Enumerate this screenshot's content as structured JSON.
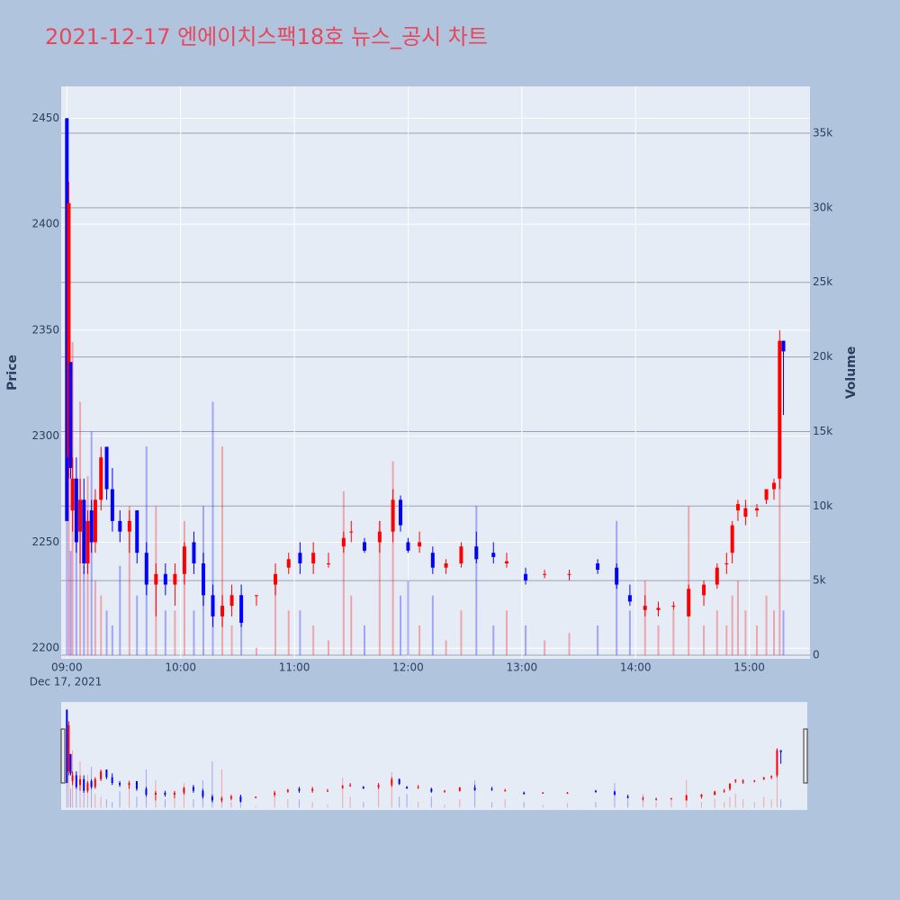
{
  "chart_data": {
    "type": "candlestick",
    "title": "2021-12-17 엔에이치스팩18호 뉴스_공시 차트",
    "y_label": "Price",
    "y2_label": "Volume",
    "x_date_label": "Dec 17, 2021",
    "increasing_color": "#ff0000",
    "decreasing_color": "#0000ff",
    "xlim": [
      "08:57",
      "15:32"
    ],
    "xticks": [
      "09:00",
      "10:00",
      "11:00",
      "12:00",
      "13:00",
      "14:00",
      "15:00"
    ],
    "ylim": [
      2195,
      2465
    ],
    "yticks": [
      2200,
      2250,
      2300,
      2350,
      2400,
      2450
    ],
    "y2lim": [
      -240,
      38140
    ],
    "y2ticks": [
      0,
      {
        "value": 5000,
        "label": "5k"
      },
      {
        "value": 10000,
        "label": "10k"
      },
      {
        "value": 15000,
        "label": "15k"
      },
      {
        "value": 20000,
        "label": "20k"
      },
      {
        "value": 25000,
        "label": "25k"
      },
      {
        "value": 30000,
        "label": "30k"
      },
      {
        "value": 35000,
        "label": "35k"
      }
    ],
    "grid": true,
    "rangeslider": true,
    "x": [
      "09:00",
      "09:01",
      "09:02",
      "09:03",
      "09:05",
      "09:07",
      "09:09",
      "09:11",
      "09:13",
      "09:15",
      "09:18",
      "09:21",
      "09:24",
      "09:28",
      "09:33",
      "09:37",
      "09:42",
      "09:47",
      "09:52",
      "09:57",
      "10:02",
      "10:07",
      "10:12",
      "10:17",
      "10:22",
      "10:27",
      "10:32",
      "10:40",
      "10:50",
      "10:57",
      "11:03",
      "11:10",
      "11:18",
      "11:26",
      "11:30",
      "11:37",
      "11:45",
      "11:52",
      "11:56",
      "12:00",
      "12:06",
      "12:13",
      "12:20",
      "12:28",
      "12:36",
      "12:45",
      "12:52",
      "13:02",
      "13:12",
      "13:25",
      "13:40",
      "13:50",
      "13:57",
      "14:05",
      "14:12",
      "14:20",
      "14:28",
      "14:36",
      "14:43",
      "14:48",
      "14:51",
      "14:54",
      "14:58",
      "15:04",
      "15:09",
      "15:13",
      "15:16",
      "15:18"
    ],
    "open": [
      2450,
      2290,
      2335,
      2265,
      2280,
      2255,
      2270,
      2240,
      2265,
      2250,
      2270,
      2295,
      2275,
      2260,
      2255,
      2265,
      2245,
      2230,
      2235,
      2230,
      2235,
      2250,
      2240,
      2225,
      2215,
      2220,
      2225,
      2225,
      2230,
      2238,
      2245,
      2240,
      2240,
      2248,
      2255,
      2250,
      2250,
      2255,
      2270,
      2250,
      2248,
      2245,
      2238,
      2240,
      2248,
      2245,
      2240,
      2235,
      2235,
      2235,
      2240,
      2238,
      2225,
      2218,
      2218,
      2220,
      2215,
      2225,
      2230,
      2240,
      2245,
      2265,
      2262,
      2265,
      2270,
      2275,
      2280,
      2345
    ],
    "high": [
      2450,
      2420,
      2335,
      2290,
      2290,
      2280,
      2280,
      2265,
      2270,
      2275,
      2295,
      2295,
      2285,
      2265,
      2265,
      2265,
      2250,
      2240,
      2240,
      2240,
      2250,
      2255,
      2245,
      2230,
      2225,
      2230,
      2230,
      2225,
      2240,
      2245,
      2250,
      2250,
      2245,
      2255,
      2260,
      2252,
      2260,
      2275,
      2272,
      2252,
      2255,
      2248,
      2242,
      2250,
      2255,
      2250,
      2245,
      2238,
      2237,
      2237,
      2242,
      2240,
      2230,
      2225,
      2222,
      2222,
      2230,
      2232,
      2240,
      2245,
      2260,
      2270,
      2270,
      2268,
      2275,
      2280,
      2350,
      2345
    ],
    "low": [
      2260,
      2280,
      2280,
      2255,
      2245,
      2240,
      2235,
      2235,
      2245,
      2245,
      2265,
      2270,
      2255,
      2250,
      2245,
      2240,
      2225,
      2215,
      2225,
      2220,
      2230,
      2235,
      2220,
      2210,
      2210,
      2215,
      2210,
      2220,
      2225,
      2235,
      2235,
      2235,
      2238,
      2245,
      2250,
      2245,
      2245,
      2250,
      2255,
      2245,
      2245,
      2235,
      2235,
      2238,
      2240,
      2240,
      2238,
      2230,
      2233,
      2232,
      2235,
      2228,
      2220,
      2215,
      2215,
      2218,
      2215,
      2220,
      2228,
      2235,
      2240,
      2260,
      2258,
      2262,
      2268,
      2270,
      2275,
      2310
    ],
    "close": [
      2260,
      2410,
      2285,
      2280,
      2250,
      2270,
      2240,
      2260,
      2250,
      2270,
      2290,
      2275,
      2260,
      2255,
      2260,
      2245,
      2230,
      2235,
      2230,
      2235,
      2248,
      2240,
      2225,
      2215,
      2220,
      2225,
      2212,
      2225,
      2235,
      2242,
      2240,
      2245,
      2240,
      2252,
      2255,
      2246,
      2255,
      2270,
      2258,
      2246,
      2250,
      2238,
      2240,
      2248,
      2242,
      2243,
      2241,
      2232,
      2235,
      2235,
      2237,
      2230,
      2222,
      2220,
      2219,
      2220,
      2228,
      2230,
      2238,
      2240,
      2258,
      2268,
      2266,
      2266,
      2275,
      2278,
      2345,
      2340
    ],
    "volume": [
      9000,
      13000,
      7000,
      21000,
      8000,
      17000,
      6000,
      12000,
      15000,
      5000,
      4000,
      3000,
      2000,
      6000,
      10000,
      4000,
      14000,
      10000,
      3000,
      3000,
      9000,
      3000,
      10000,
      17000,
      14000,
      2000,
      3000,
      500,
      5000,
      3000,
      3000,
      2000,
      1000,
      11000,
      4000,
      2000,
      9000,
      13000,
      4000,
      5000,
      2000,
      4000,
      1000,
      3000,
      10000,
      2000,
      3000,
      2000,
      1000,
      1500,
      2000,
      9000,
      3000,
      5000,
      2000,
      3000,
      10000,
      2000,
      3000,
      2000,
      4000,
      5000,
      3000,
      2000,
      4000,
      3000,
      12000,
      3000
    ]
  }
}
